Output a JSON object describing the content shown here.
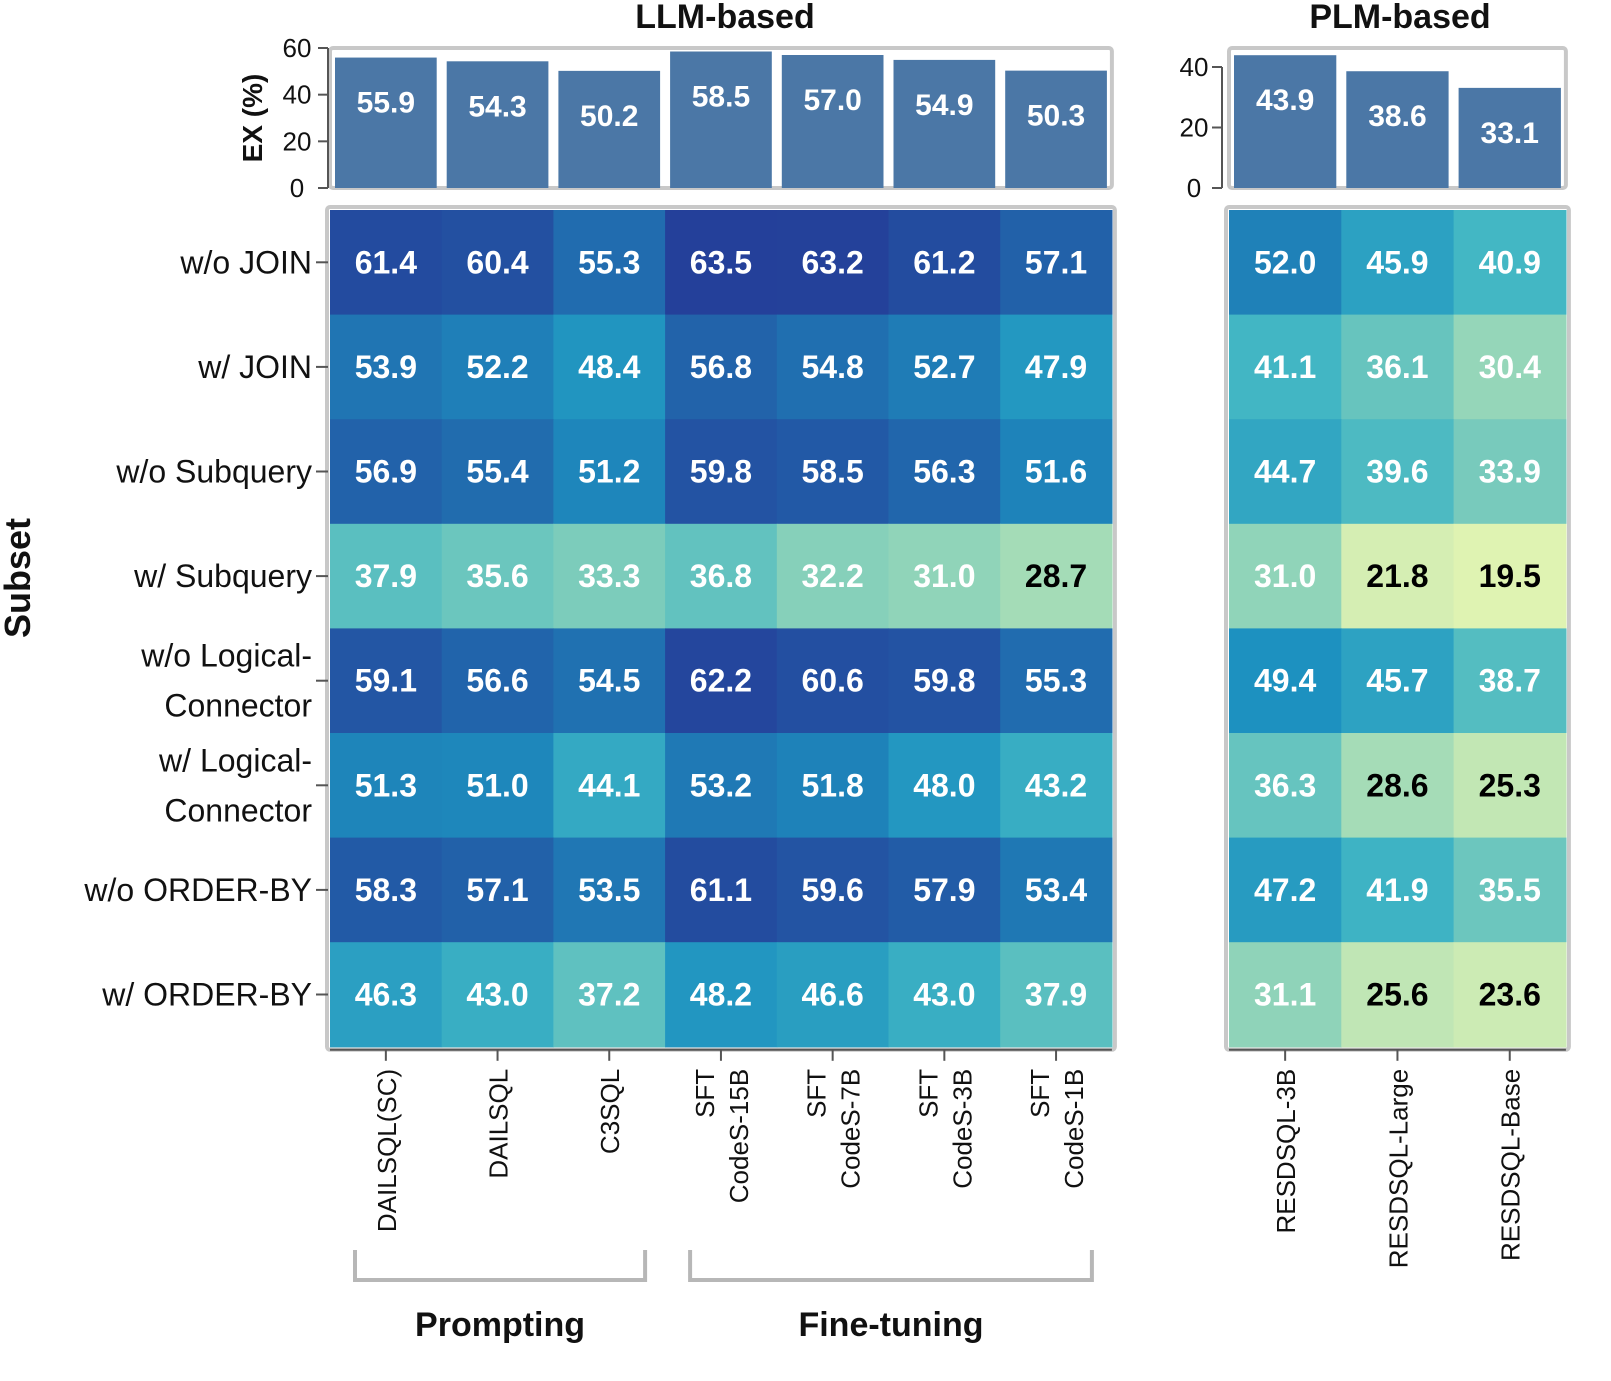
{
  "chart_data": {
    "type": "heatmap",
    "groups": [
      {
        "title": "LLM-based",
        "columns": [
          "DAILSQL(SC)",
          "DAILSQL",
          "C3SQL",
          "SFT CodeS-15B",
          "SFT CodeS-7B",
          "SFT CodeS-3B",
          "SFT CodeS-1B"
        ],
        "column_label_lines": [
          [
            "DAILSQL(SC)"
          ],
          [
            "DAILSQL"
          ],
          [
            "C3SQL"
          ],
          [
            "SFT",
            "CodeS-15B"
          ],
          [
            "SFT",
            "CodeS-7B"
          ],
          [
            "SFT",
            "CodeS-3B"
          ],
          [
            "SFT",
            "CodeS-1B"
          ]
        ],
        "bar_values": [
          55.9,
          54.3,
          50.2,
          58.5,
          57.0,
          54.9,
          50.3
        ],
        "bar_ylim": [
          0,
          60
        ],
        "bar_yticks": [
          0,
          20,
          40,
          60
        ],
        "values": [
          [
            61.4,
            60.4,
            55.3,
            63.5,
            63.2,
            61.2,
            57.1
          ],
          [
            53.9,
            52.2,
            48.4,
            56.8,
            54.8,
            52.7,
            47.9
          ],
          [
            56.9,
            55.4,
            51.2,
            59.8,
            58.5,
            56.3,
            51.6
          ],
          [
            37.9,
            35.6,
            33.3,
            36.8,
            32.2,
            31.0,
            28.7
          ],
          [
            59.1,
            56.6,
            54.5,
            62.2,
            60.6,
            59.8,
            55.3
          ],
          [
            51.3,
            51.0,
            44.1,
            53.2,
            51.8,
            48.0,
            43.2
          ],
          [
            58.3,
            57.1,
            53.5,
            61.1,
            59.6,
            57.9,
            53.4
          ],
          [
            46.3,
            43.0,
            37.2,
            48.2,
            46.6,
            43.0,
            37.9
          ]
        ],
        "brackets": [
          {
            "label": "Prompting",
            "columns": [
              0,
              2
            ]
          },
          {
            "label": "Fine-tuning",
            "columns": [
              3,
              6
            ]
          }
        ]
      },
      {
        "title": "PLM-based",
        "columns": [
          "RESDSQL-3B",
          "RESDSQL-Large",
          "RESDSQL-Base"
        ],
        "column_label_lines": [
          [
            "RESDSQL-3B"
          ],
          [
            "RESDSQL-Large"
          ],
          [
            "RESDSQL-Base"
          ]
        ],
        "bar_values": [
          43.9,
          38.6,
          33.1
        ],
        "bar_ylim": [
          0,
          40
        ],
        "bar_yticks": [
          0,
          20,
          40
        ],
        "values": [
          [
            52.0,
            45.9,
            40.9
          ],
          [
            41.1,
            36.1,
            30.4
          ],
          [
            44.7,
            39.6,
            33.9
          ],
          [
            31.0,
            21.8,
            19.5
          ],
          [
            49.4,
            45.7,
            38.7
          ],
          [
            36.3,
            28.6,
            25.3
          ],
          [
            47.2,
            41.9,
            35.5
          ],
          [
            31.1,
            25.6,
            23.6
          ]
        ]
      }
    ],
    "rows": [
      "w/o JOIN",
      "w/ JOIN",
      "w/o Subquery",
      "w/ Subquery",
      "w/o Logical-Connector",
      "w/ Logical-Connector",
      "w/o ORDER-BY",
      "w/ ORDER-BY"
    ],
    "row_label_lines": [
      [
        "w/o JOIN"
      ],
      [
        "w/ JOIN"
      ],
      [
        "w/o Subquery"
      ],
      [
        "w/ Subquery"
      ],
      [
        "w/o Logical-",
        "Connector"
      ],
      [
        "w/ Logical-",
        "Connector"
      ],
      [
        "w/o ORDER-BY"
      ],
      [
        "w/ ORDER-BY"
      ]
    ],
    "bar_ylabel": "EX (%)",
    "row_axis_label": "Subset",
    "color_scale": {
      "name": "YlGnBu",
      "domain": [
        19.5,
        63.5
      ],
      "dark_text_below": 29.5
    },
    "colors": {
      "bar_fill": "#4b77a6",
      "bar_text": "#ffffff",
      "cell_text_light": "#ffffff",
      "cell_text_dark": "#000000",
      "frame": "#c8c8c8",
      "axis": "#555555",
      "bracket": "#b7b7b7"
    }
  }
}
